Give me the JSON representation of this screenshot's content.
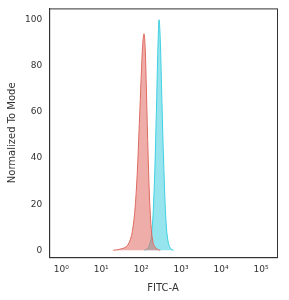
{
  "chart_data": {
    "type": "line",
    "x_label": "FITC-A",
    "y_label": "Normalized To Mode",
    "log": "x",
    "grid": false,
    "xlim": [
      0.5,
      250000
    ],
    "xticks": [
      {
        "value": 1,
        "label": "10⁰"
      },
      {
        "value": 10,
        "label": "10¹"
      },
      {
        "value": 100,
        "label": "10²"
      },
      {
        "value": 1000,
        "label": "10³"
      },
      {
        "value": 10000,
        "label": "10⁴"
      },
      {
        "value": 100000,
        "label": "10⁵"
      }
    ],
    "ylim": [
      -3,
      105
    ],
    "yticks": [
      0,
      20,
      40,
      60,
      80,
      100
    ],
    "series": [
      {
        "color": "#e06a60",
        "x": [
          20,
          30,
          45,
          60,
          75,
          90,
          100,
          110,
          118,
          126,
          135,
          150,
          170,
          200,
          250,
          300
        ],
        "values": [
          0,
          0.5,
          2,
          8,
          25,
          55,
          75,
          90,
          94,
          88,
          70,
          40,
          15,
          3,
          0.5,
          0
        ]
      },
      {
        "color": "#3fcfe0",
        "x": [
          120,
          150,
          180,
          210,
          240,
          260,
          280,
          300,
          330,
          370,
          420,
          480,
          560,
          650
        ],
        "values": [
          0,
          1,
          6,
          25,
          60,
          85,
          100,
          92,
          65,
          35,
          12,
          3,
          0.5,
          0
        ]
      }
    ]
  }
}
